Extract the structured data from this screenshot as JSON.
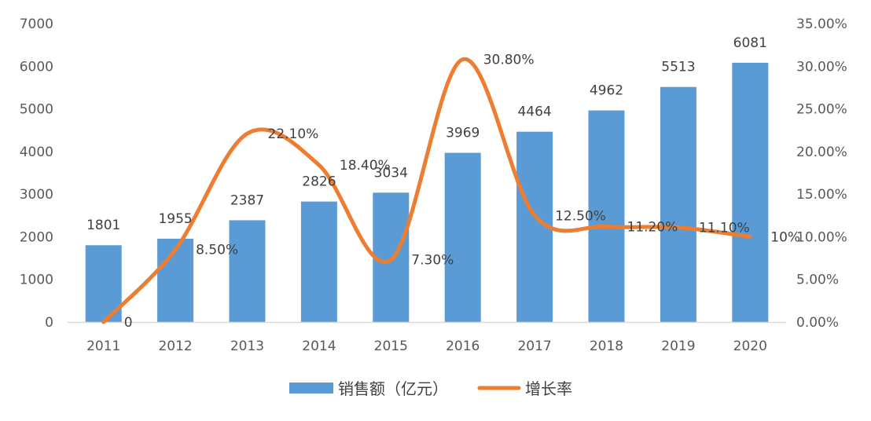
{
  "chart_data": {
    "type": "bar",
    "categories": [
      "2011",
      "2012",
      "2013",
      "2014",
      "2015",
      "2016",
      "2017",
      "2018",
      "2019",
      "2020"
    ],
    "series": [
      {
        "name": "销售额（亿元）",
        "type": "bar",
        "axis": "left",
        "color": "#5B9BD5",
        "values": [
          1801,
          1955,
          2387,
          2826,
          3034,
          3969,
          4464,
          4962,
          5513,
          6081
        ],
        "labels": [
          "1801",
          "1955",
          "2387",
          "2826",
          "3034",
          "3969",
          "4464",
          "4962",
          "5513",
          "6081"
        ]
      },
      {
        "name": "增长率",
        "type": "line",
        "smooth": true,
        "axis": "right",
        "color": "#ED7D31",
        "values": [
          0,
          8.5,
          22.1,
          18.4,
          7.3,
          30.8,
          12.5,
          11.2,
          11.1,
          10
        ],
        "labels": [
          "0",
          "8.50%",
          "22.10%",
          "18.40%",
          "7.30%",
          "30.80%",
          "12.50%",
          "11.20%",
          "11.10%",
          "10%"
        ]
      }
    ],
    "y_left": {
      "range": [
        0,
        7000
      ],
      "ticks": [
        0,
        1000,
        2000,
        3000,
        4000,
        5000,
        6000,
        7000
      ],
      "tick_labels": [
        "0",
        "1000",
        "2000",
        "3000",
        "4000",
        "5000",
        "6000",
        "7000"
      ]
    },
    "y_right": {
      "range": [
        0,
        35
      ],
      "ticks": [
        0,
        5,
        10,
        15,
        20,
        25,
        30,
        35
      ],
      "tick_labels": [
        "0.00%",
        "5.00%",
        "10.00%",
        "15.00%",
        "20.00%",
        "25.00%",
        "30.00%",
        "35.00%"
      ]
    },
    "grid": false,
    "legend": "bottom"
  }
}
